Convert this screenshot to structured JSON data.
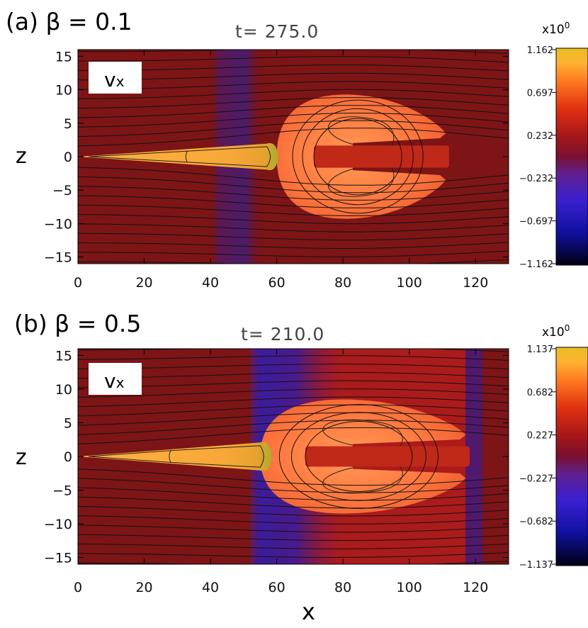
{
  "chart_data": [
    {
      "type": "heatmap",
      "panel_label": "(a) β = 0.1",
      "title": "t= 275.0",
      "variable_label": "vx",
      "xlabel": "",
      "ylabel": "z",
      "xlim": [
        0,
        130
      ],
      "ylim": [
        -16,
        16
      ],
      "xticks": [
        "0",
        "20",
        "40",
        "60",
        "80",
        "100",
        "120"
      ],
      "xtick_values": [
        0,
        20,
        40,
        60,
        80,
        100,
        120
      ],
      "yticks": [
        "15",
        "10",
        "5",
        "0",
        "−5",
        "−10",
        "−15"
      ],
      "ytick_values": [
        15,
        10,
        5,
        0,
        -5,
        -10,
        -15
      ],
      "colorbar": {
        "multiplier": "x10",
        "exponent": "0",
        "ticks": [
          "1.162",
          "0.697",
          "0.232",
          "−0.232",
          "−0.697",
          "−1.162"
        ],
        "range": [
          -1.162,
          1.162
        ]
      },
      "features": {
        "jet_tip_x": 0,
        "jet_end_x": 57,
        "jet_halfwidth": 1.5,
        "flare_x": 57,
        "lobe_left_x": 60,
        "lobe_right_x": 111,
        "lobe_halfheight": 9.2,
        "rarefaction_x": [
          40,
          55
        ]
      }
    },
    {
      "type": "heatmap",
      "panel_label": "(b) β = 0.5",
      "title": "t= 210.0",
      "variable_label": "vx",
      "xlabel": "x",
      "ylabel": "z",
      "xlim": [
        0,
        130
      ],
      "ylim": [
        -16,
        16
      ],
      "xticks": [
        "0",
        "20",
        "40",
        "60",
        "80",
        "100",
        "120"
      ],
      "xtick_values": [
        0,
        20,
        40,
        60,
        80,
        100,
        120
      ],
      "yticks": [
        "15",
        "10",
        "5",
        "0",
        "−5",
        "−10",
        "−15"
      ],
      "ytick_values": [
        15,
        10,
        5,
        0,
        -5,
        -10,
        -15
      ],
      "colorbar": {
        "multiplier": "x10",
        "exponent": "0",
        "ticks": [
          "1.137",
          "0.682",
          "0.227",
          "−0.227",
          "−0.682",
          "−1.137"
        ],
        "range": [
          -1.137,
          1.137
        ]
      },
      "features": {
        "jet_tip_x": 0,
        "jet_end_x": 55,
        "jet_halfwidth": 1.6,
        "flare_x": 54,
        "lobe_left_x": 55,
        "lobe_right_x": 117,
        "lobe_halfheight": 8.4,
        "rarefaction_x": [
          52,
          80
        ]
      }
    }
  ]
}
